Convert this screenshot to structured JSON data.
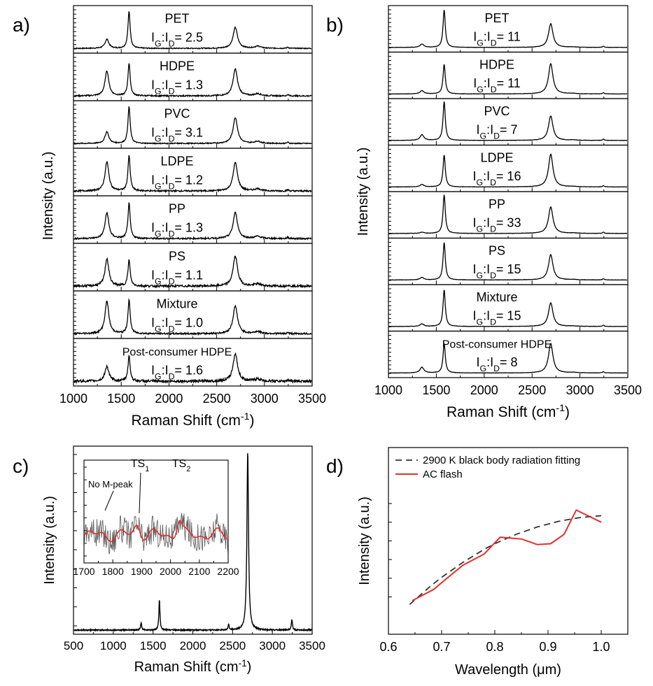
{
  "chart_data": [
    {
      "panel": "a)",
      "type": "line",
      "xlabel": "Raman Shift (cm",
      "xlabel_sup": "-1",
      "xlabel_end": ")",
      "ylabel": "Intensity (a.u.)",
      "xlim": [
        1000,
        3500
      ],
      "xticks": [
        "1000",
        "1500",
        "2000",
        "2500",
        "3000",
        "3500"
      ],
      "ratio_prefix": "I",
      "ratio_sub1": "G",
      "ratio_colon": ":I",
      "ratio_sub2": "D",
      "ratio_eq": "= ",
      "spectra": [
        {
          "name": "PET",
          "ratio": "2.5",
          "d": 0.22,
          "g": 0.88,
          "twod": 0.5,
          "noise": 0.012
        },
        {
          "name": "HDPE",
          "ratio": "1.3",
          "d": 0.6,
          "g": 0.78,
          "twod": 0.64,
          "noise": 0.015
        },
        {
          "name": "PVC",
          "ratio": "3.1",
          "d": 0.28,
          "g": 0.88,
          "twod": 0.62,
          "noise": 0.012
        },
        {
          "name": "LDPE",
          "ratio": "1.2",
          "d": 0.7,
          "g": 0.84,
          "twod": 0.68,
          "noise": 0.018
        },
        {
          "name": "PP",
          "ratio": "1.3",
          "d": 0.62,
          "g": 0.84,
          "twod": 0.62,
          "noise": 0.018
        },
        {
          "name": "PS",
          "ratio": "1.1",
          "d": 0.66,
          "g": 0.62,
          "twod": 0.72,
          "noise": 0.025
        },
        {
          "name": "Mixture",
          "ratio": "1.0",
          "d": 0.78,
          "g": 0.8,
          "twod": 0.66,
          "noise": 0.02
        },
        {
          "name": "Post-consumer HDPE",
          "ratio": "1.6",
          "d": 0.36,
          "g": 0.6,
          "twod": 0.66,
          "noise": 0.03
        }
      ]
    },
    {
      "panel": "b)",
      "type": "line",
      "xlabel": "Raman Shift (cm",
      "xlabel_sup": "-1",
      "xlabel_end": ")",
      "ylabel": "Intensity (a.u.)",
      "xlim": [
        1000,
        3500
      ],
      "xticks": [
        "1000",
        "1500",
        "2000",
        "2500",
        "3000",
        "3500"
      ],
      "ratio_prefix": "I",
      "ratio_sub1": "G",
      "ratio_colon": ":I",
      "ratio_sub2": "D",
      "ratio_eq": "= ",
      "spectra": [
        {
          "name": "PET",
          "ratio": "11",
          "d": 0.08,
          "g": 0.92,
          "twod": 0.58,
          "noise": 0.004
        },
        {
          "name": "HDPE",
          "ratio": "11",
          "d": 0.08,
          "g": 0.72,
          "twod": 0.74,
          "noise": 0.004
        },
        {
          "name": "PVC",
          "ratio": "7",
          "d": 0.14,
          "g": 0.95,
          "twod": 0.6,
          "noise": 0.004
        },
        {
          "name": "LDPE",
          "ratio": "16",
          "d": 0.06,
          "g": 0.78,
          "twod": 0.8,
          "noise": 0.004
        },
        {
          "name": "PP",
          "ratio": "33",
          "d": 0.03,
          "g": 0.95,
          "twod": 0.65,
          "noise": 0.004
        },
        {
          "name": "PS",
          "ratio": "15",
          "d": 0.06,
          "g": 0.92,
          "twod": 0.62,
          "noise": 0.004
        },
        {
          "name": "Mixture",
          "ratio": "15",
          "d": 0.06,
          "g": 0.9,
          "twod": 0.58,
          "noise": 0.004
        },
        {
          "name": "Post-consumer HDPE",
          "ratio": "8",
          "d": 0.14,
          "g": 0.72,
          "twod": 0.72,
          "noise": 0.004
        }
      ]
    },
    {
      "panel": "c)",
      "type": "line",
      "xlabel": "Raman Shift (cm",
      "xlabel_sup": "-1",
      "xlabel_end": ")",
      "ylabel": "Intensity (a.u.)",
      "xlim": [
        500,
        3500
      ],
      "xticks": [
        "500",
        "1000",
        "1500",
        "2000",
        "2500",
        "3000",
        "3500"
      ],
      "peaks": [
        {
          "x": 1350,
          "h": 0.04
        },
        {
          "x": 1580,
          "h": 0.17
        },
        {
          "x": 2450,
          "h": 0.03
        },
        {
          "x": 2690,
          "h": 1.0
        },
        {
          "x": 3245,
          "h": 0.06
        }
      ],
      "inset": {
        "xlim": [
          1700,
          2200
        ],
        "xticks": [
          "1700",
          "1800",
          "1900",
          "2000",
          "2100",
          "2200"
        ],
        "annotations": {
          "no_m": "No M-peak",
          "ts1": "TS",
          "ts1_sub": "1",
          "ts2": "TS",
          "ts2_sub": "2"
        },
        "raw_color": "#555555",
        "smooth_color": "#e0302e"
      }
    },
    {
      "panel": "d)",
      "type": "line",
      "xlabel": "Wavelength (",
      "xlabel_mu": "μ",
      "xlabel_end": "m)",
      "ylabel": "Intensity (a.u.)",
      "xlim": [
        0.6,
        1.05
      ],
      "xticks": [
        "0.6",
        "0.7",
        "0.8",
        "0.9",
        "1.0"
      ],
      "series": [
        {
          "name": "2900 K black body radiation fitting",
          "style": "dashed",
          "color": "#333333",
          "x": [
            0.64,
            0.66,
            0.68,
            0.7,
            0.72,
            0.74,
            0.76,
            0.78,
            0.8,
            0.82,
            0.84,
            0.86,
            0.88,
            0.9,
            0.92,
            0.94,
            0.96,
            0.98,
            1.0
          ],
          "y": [
            0.16,
            0.21,
            0.26,
            0.305,
            0.345,
            0.385,
            0.42,
            0.455,
            0.485,
            0.51,
            0.535,
            0.555,
            0.575,
            0.59,
            0.605,
            0.615,
            0.625,
            0.63,
            0.635
          ]
        },
        {
          "name": "AC flash",
          "style": "solid",
          "color": "#e0302e",
          "x": [
            0.645,
            0.685,
            0.71,
            0.74,
            0.78,
            0.81,
            0.85,
            0.88,
            0.905,
            0.93,
            0.953,
            1.0
          ],
          "y": [
            0.18,
            0.24,
            0.3,
            0.37,
            0.43,
            0.52,
            0.51,
            0.48,
            0.485,
            0.535,
            0.665,
            0.6
          ]
        }
      ]
    }
  ]
}
